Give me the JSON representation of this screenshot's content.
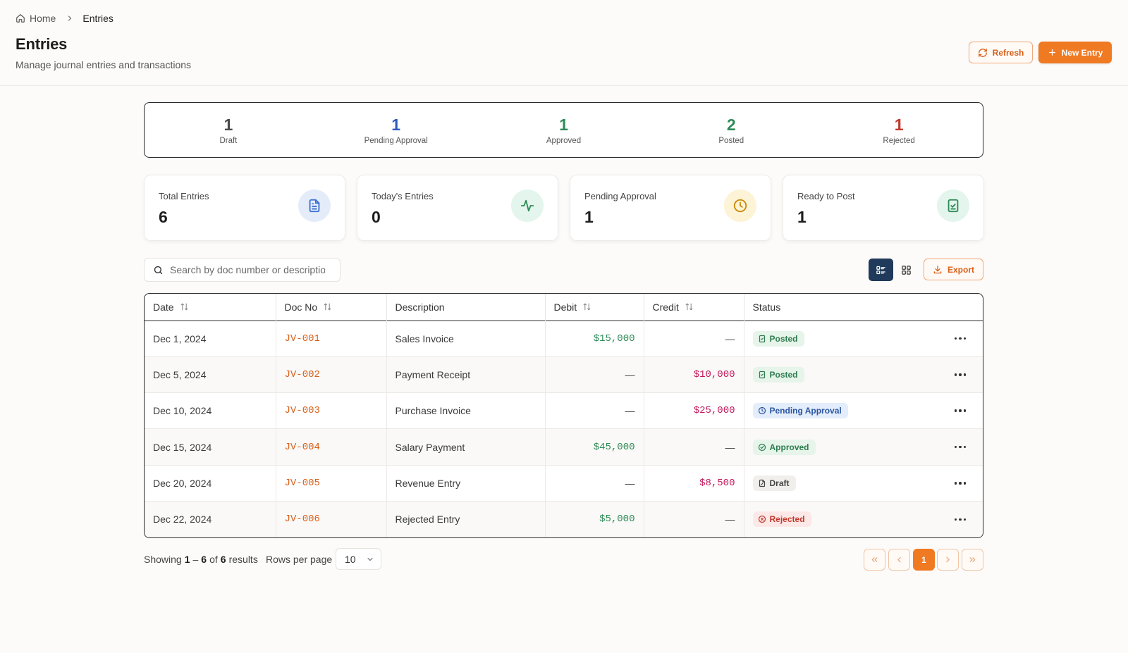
{
  "breadcrumb": {
    "home": "Home",
    "current": "Entries"
  },
  "header": {
    "title": "Entries",
    "subtitle": "Manage journal entries and transactions",
    "refresh_label": "Refresh",
    "new_entry_label": "New Entry"
  },
  "status_strip": [
    {
      "count": "1",
      "label": "Draft",
      "color": "#4a4a4a"
    },
    {
      "count": "1",
      "label": "Pending Approval",
      "color": "#2a5bbf"
    },
    {
      "count": "1",
      "label": "Approved",
      "color": "#2e8b57"
    },
    {
      "count": "2",
      "label": "Posted",
      "color": "#2e8b57"
    },
    {
      "count": "1",
      "label": "Rejected",
      "color": "#c0392b"
    }
  ],
  "cards": [
    {
      "label": "Total Entries",
      "value": "6",
      "icon": "document-icon",
      "icon_bg": "#e4ecfa",
      "icon_color": "#3c6fd1"
    },
    {
      "label": "Today's Entries",
      "value": "0",
      "icon": "activity-icon",
      "icon_bg": "#e3f5ec",
      "icon_color": "#2e8b57"
    },
    {
      "label": "Pending Approval",
      "value": "1",
      "icon": "clock-icon",
      "icon_bg": "#fdf3d6",
      "icon_color": "#c98a0a"
    },
    {
      "label": "Ready to Post",
      "value": "1",
      "icon": "clipboard-check-icon",
      "icon_bg": "#e3f5ec",
      "icon_color": "#2e8b57"
    }
  ],
  "toolbar": {
    "search_placeholder": "Search by doc number or description",
    "export_label": "Export"
  },
  "table": {
    "columns": [
      "Date",
      "Doc No",
      "Description",
      "Debit",
      "Credit",
      "Status"
    ],
    "rows": [
      {
        "date": "Dec 1, 2024",
        "doc": "JV-001",
        "description": "Sales Invoice",
        "debit": "$15,000",
        "credit": "—",
        "status": "Posted",
        "status_type": "posted"
      },
      {
        "date": "Dec 5, 2024",
        "doc": "JV-002",
        "description": "Payment Receipt",
        "debit": "—",
        "credit": "$10,000",
        "status": "Posted",
        "status_type": "posted"
      },
      {
        "date": "Dec 10, 2024",
        "doc": "JV-003",
        "description": "Purchase Invoice",
        "debit": "—",
        "credit": "$25,000",
        "status": "Pending Approval",
        "status_type": "pending"
      },
      {
        "date": "Dec 15, 2024",
        "doc": "JV-004",
        "description": "Salary Payment",
        "debit": "$45,000",
        "credit": "—",
        "status": "Approved",
        "status_type": "approved"
      },
      {
        "date": "Dec 20, 2024",
        "doc": "JV-005",
        "description": "Revenue Entry",
        "debit": "—",
        "credit": "$8,500",
        "status": "Draft",
        "status_type": "draft"
      },
      {
        "date": "Dec 22, 2024",
        "doc": "JV-006",
        "description": "Rejected Entry",
        "debit": "$5,000",
        "credit": "—",
        "status": "Rejected",
        "status_type": "rejected"
      }
    ]
  },
  "pagination": {
    "showing_prefix": "Showing",
    "range_start": "1",
    "range_sep": "–",
    "range_end": "6",
    "of": "of",
    "total": "6",
    "results": "results",
    "rows_per_page_label": "Rows per page",
    "rows_per_page": "10",
    "current_page": "1"
  }
}
